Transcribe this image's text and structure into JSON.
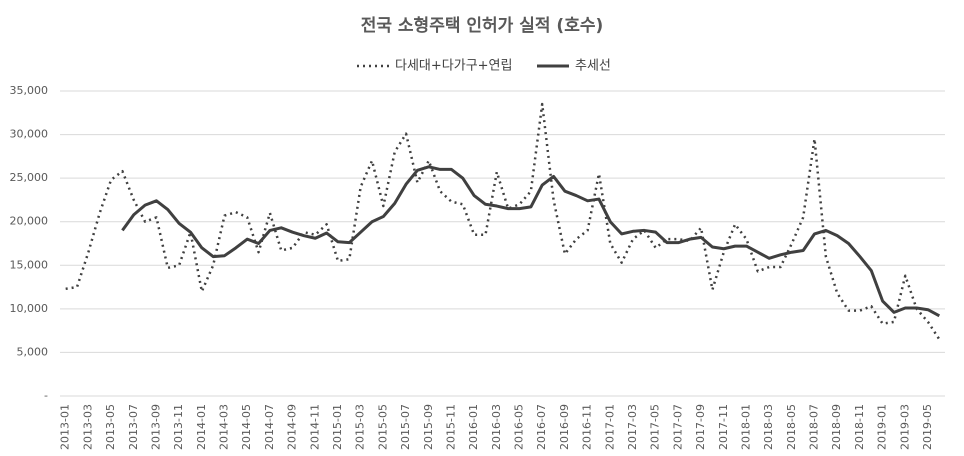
{
  "chart_data": {
    "type": "line",
    "title": "전국 소형주택 인허가 실적 (호수)",
    "categories": [
      "2013-01",
      null,
      "2013-03",
      null,
      "2013-05",
      null,
      "2013-07",
      null,
      "2013-09",
      null,
      "2013-11",
      null,
      "2014-01",
      null,
      "2014-03",
      null,
      "2014-05",
      null,
      "2014-07",
      null,
      "2014-09",
      null,
      "2014-11",
      null,
      "2015-01",
      null,
      "2015-03",
      null,
      "2015-05",
      null,
      "2015-07",
      null,
      "2015-09",
      null,
      "2015-11",
      null,
      "2016-01",
      null,
      "2016-03",
      null,
      "2016-05",
      null,
      "2016-07",
      null,
      "2016-09",
      null,
      "2016-11",
      null,
      "2017-01",
      null,
      "2017-03",
      null,
      "2017-05",
      null,
      "2017-07",
      null,
      "2017-09",
      null,
      "2017-11",
      null,
      "2018-01",
      null,
      "2018-03",
      null,
      "2018-05",
      null,
      "2018-07",
      null,
      "2018-09",
      null,
      "2018-11",
      null,
      "2019-01",
      null,
      "2019-03",
      null,
      "2019-05",
      null
    ],
    "series": [
      {
        "name": "다세대+다가구+연립",
        "color": "#404040",
        "dash": "dotted",
        "values": [
          12300,
          12500,
          16500,
          21000,
          24800,
          25800,
          22500,
          20000,
          20500,
          14700,
          15000,
          18800,
          12000,
          15000,
          20700,
          21100,
          20500,
          16500,
          21000,
          16700,
          17000,
          18800,
          18500,
          19700,
          15500,
          15700,
          24000,
          27000,
          21800,
          28000,
          30100,
          24500,
          27000,
          23500,
          22300,
          22000,
          18500,
          18500,
          25700,
          21500,
          22000,
          23500,
          33500,
          22500,
          16300,
          18000,
          19000,
          25500,
          17500,
          15300,
          18000,
          19000,
          17000,
          18000,
          18000,
          17800,
          19300,
          12200,
          16500,
          19700,
          18000,
          14300,
          14800,
          14800,
          17500,
          20500,
          29500,
          16000,
          11800,
          9800,
          9800,
          10300,
          8300,
          8500,
          13800,
          10000,
          8500,
          6500
        ]
      },
      {
        "name": "추세선",
        "color": "#404040",
        "dash": "solid",
        "values": [
          null,
          null,
          null,
          null,
          null,
          19000,
          20800,
          21900,
          22400,
          21400,
          19800,
          18800,
          17000,
          16000,
          16100,
          17000,
          18000,
          17500,
          19000,
          19300,
          18800,
          18400,
          18100,
          18700,
          17700,
          17600,
          18800,
          20000,
          20600,
          22100,
          24300,
          25900,
          26300,
          26000,
          26000,
          25000,
          23000,
          22000,
          21800,
          21500,
          21500,
          21700,
          24200,
          25200,
          23500,
          23000,
          22400,
          22600,
          20000,
          18600,
          18900,
          19000,
          18800,
          17600,
          17600,
          18000,
          18200,
          17100,
          16900,
          17200,
          17200,
          16500,
          15800,
          16200,
          16500,
          16700,
          18600,
          19000,
          18400,
          17500,
          16000,
          14400,
          10900,
          9600,
          10100,
          10100,
          9900,
          9200
        ]
      }
    ],
    "ylim": [
      0,
      35000
    ],
    "yticks": [
      {
        "value": 0,
        "label": "-"
      },
      {
        "value": 5000,
        "label": "5,000"
      },
      {
        "value": 10000,
        "label": "10,000"
      },
      {
        "value": 15000,
        "label": "15,000"
      },
      {
        "value": 20000,
        "label": "20,000"
      },
      {
        "value": 25000,
        "label": "25,000"
      },
      {
        "value": 30000,
        "label": "30,000"
      },
      {
        "value": 35000,
        "label": "35,000"
      }
    ],
    "grid": true,
    "legend": "top"
  }
}
